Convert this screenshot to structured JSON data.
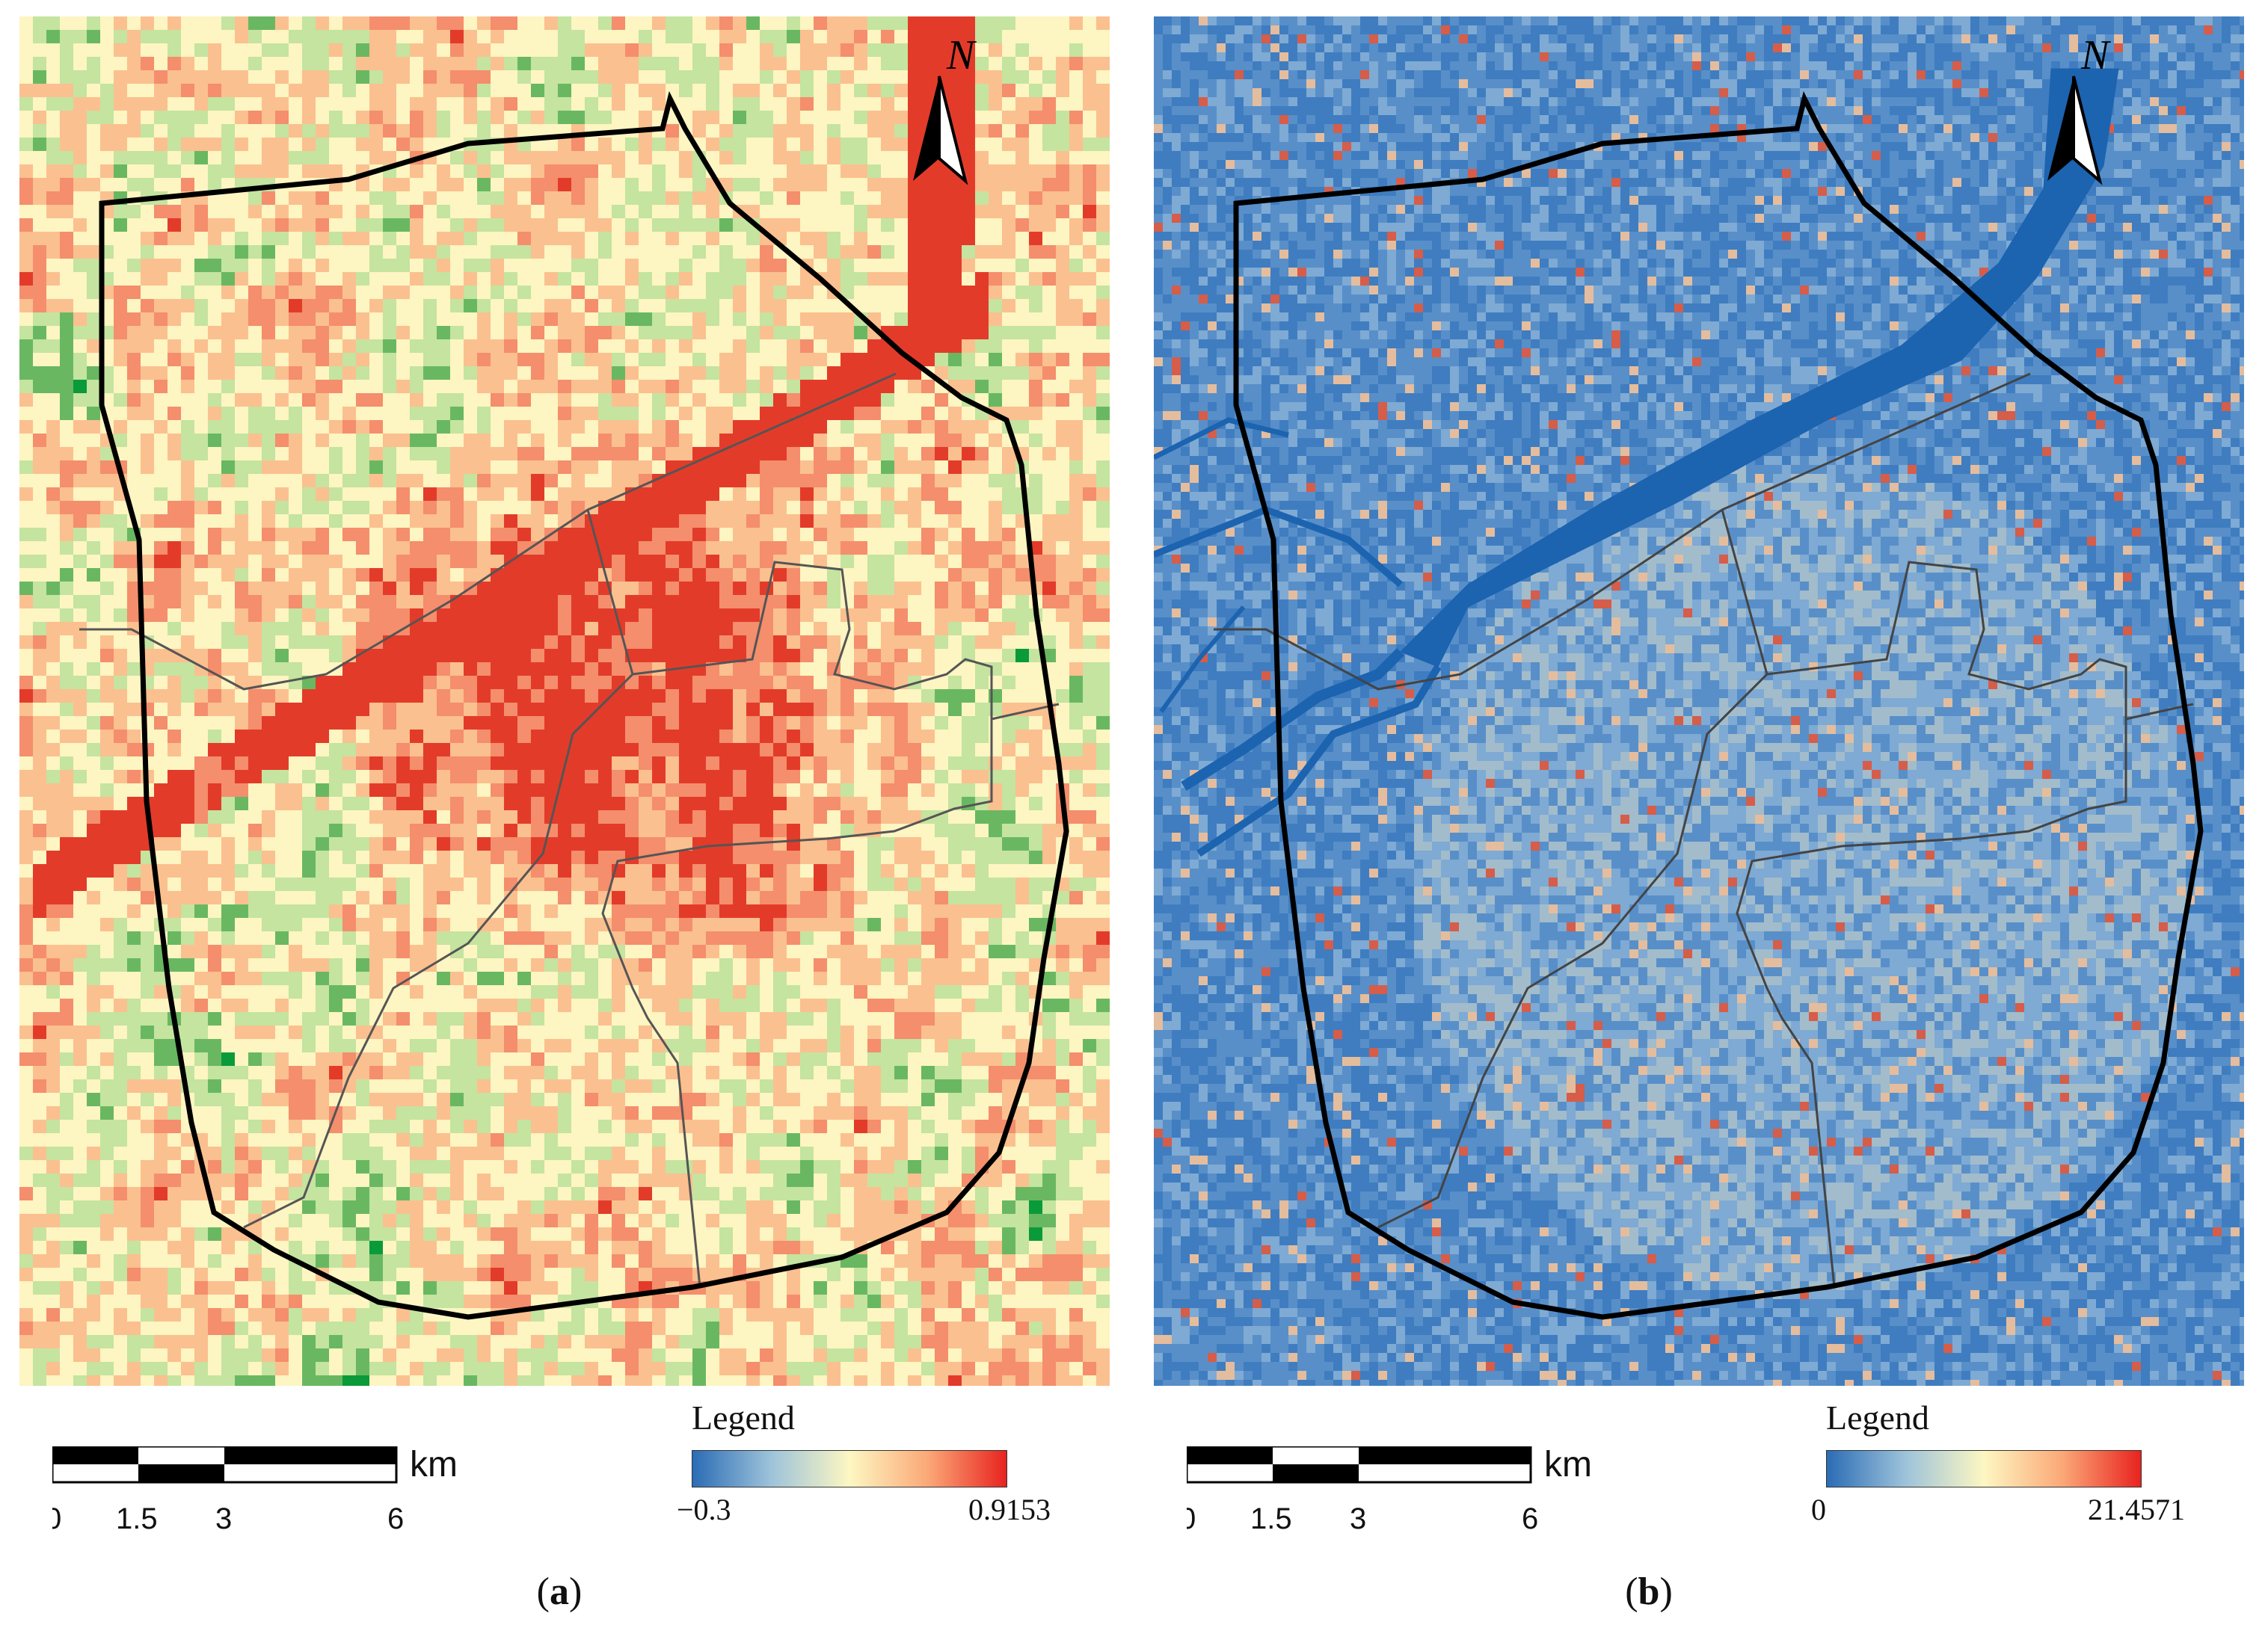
{
  "panels": [
    {
      "id": "a",
      "caption_open": "(",
      "caption_letter": "a",
      "caption_close": ")",
      "legend": {
        "title": "Legend",
        "min": "−0.3",
        "max": "0.9153",
        "colors": [
          "#2b6cb5",
          "#9dc3da",
          "#fdf7c2",
          "#fba877",
          "#e8231f"
        ]
      },
      "scalebar": {
        "unit": "km",
        "ticks": [
          "0",
          "1.5",
          "3",
          "6"
        ]
      },
      "north_label": "N"
    },
    {
      "id": "b",
      "caption_open": "(",
      "caption_letter": "b",
      "caption_close": ")",
      "legend": {
        "title": "Legend",
        "min": "0",
        "max": "21.4571",
        "colors": [
          "#2b6cb5",
          "#9dc3da",
          "#fdf7c2",
          "#fba877",
          "#e8231f"
        ]
      },
      "scalebar": {
        "unit": "km",
        "ticks": [
          "0",
          "1.5",
          "3",
          "6"
        ]
      },
      "north_label": "N"
    }
  ],
  "palette_a": [
    "#0a9a3a",
    "#69b861",
    "#c4e4a0",
    "#fdf5c2",
    "#fbc08f",
    "#f48e6c",
    "#e33b2a"
  ],
  "palette_b": [
    "#3f7dc0",
    "#6d9ed0",
    "#b3cfe4",
    "#f4f1d4",
    "#f6c49a",
    "#e55a3c"
  ]
}
